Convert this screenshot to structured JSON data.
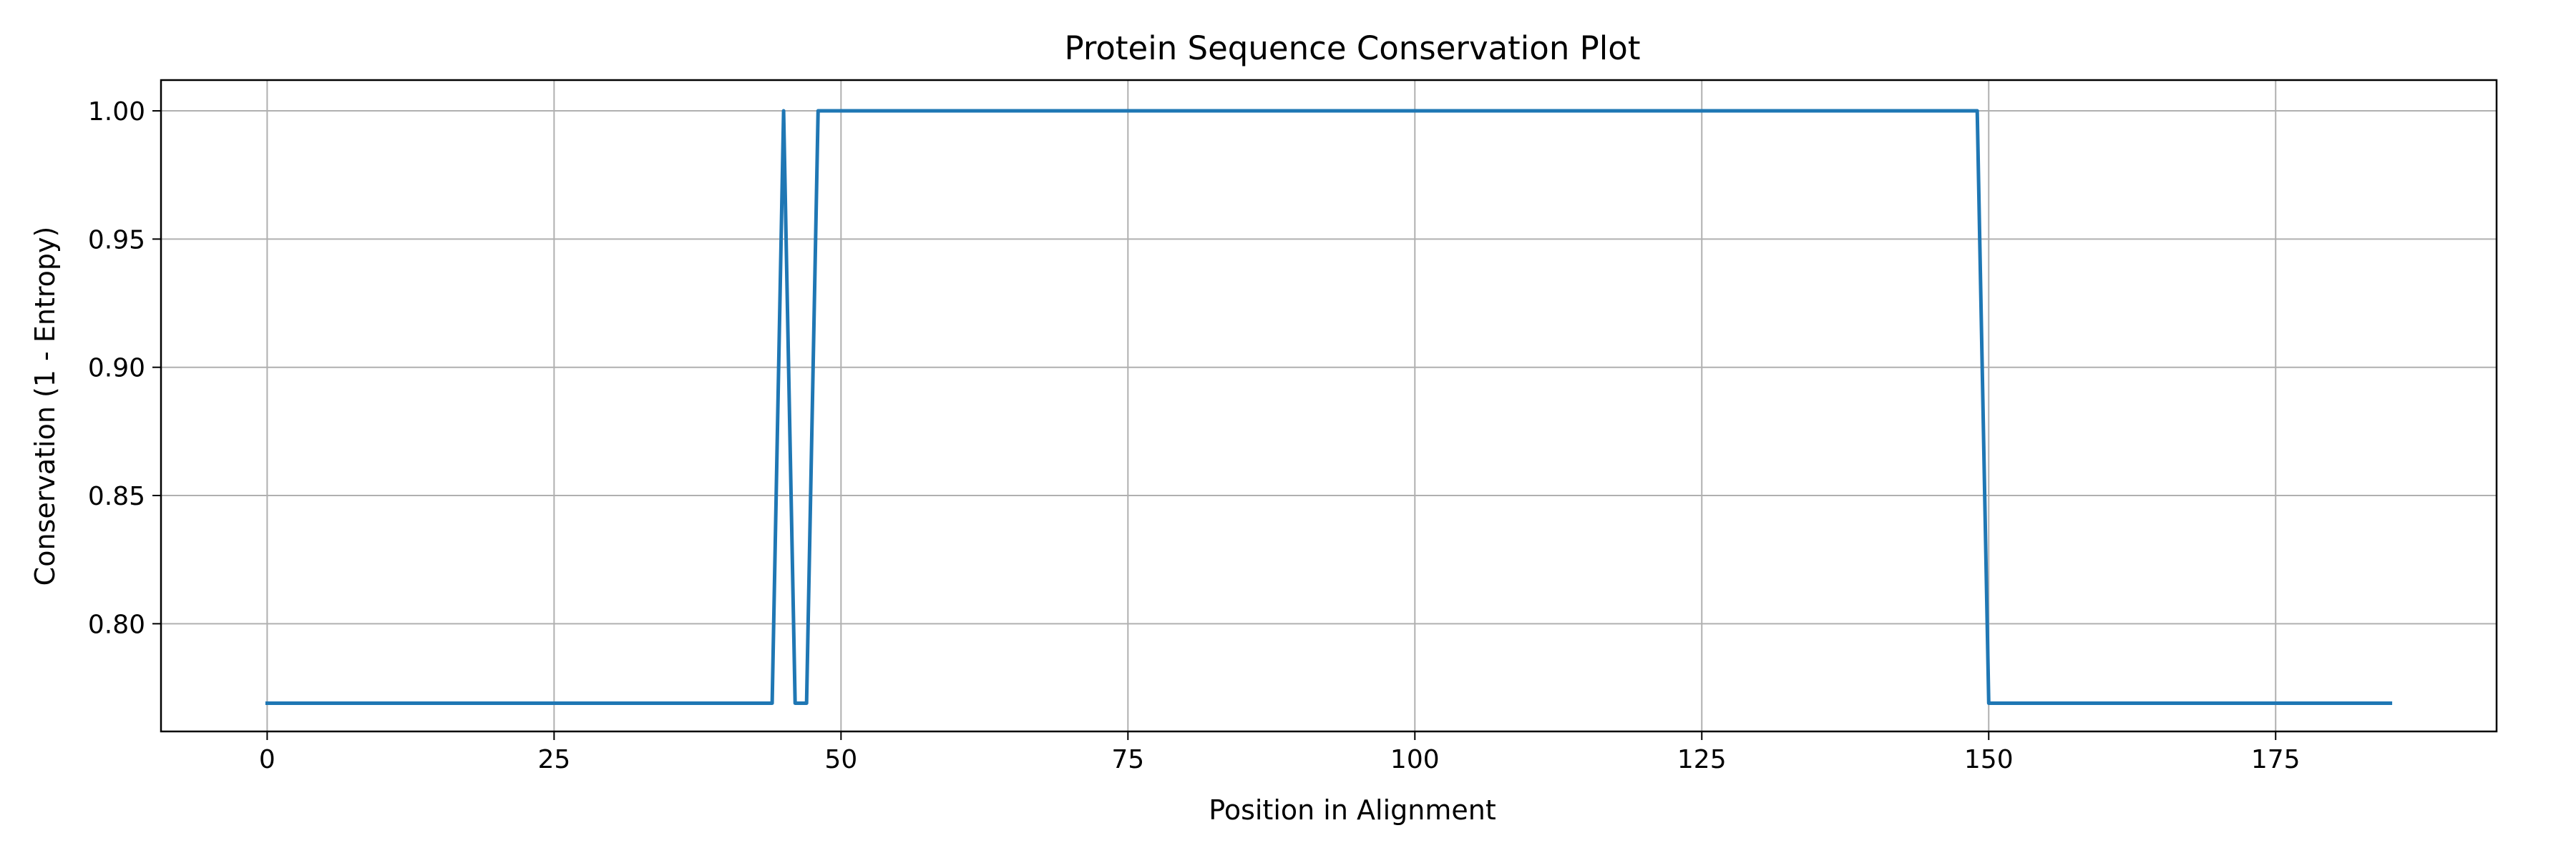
{
  "chart_data": {
    "type": "line",
    "title": "Protein Sequence Conservation Plot",
    "xlabel": "Position in Alignment",
    "ylabel": "Conservation (1 - Entropy)",
    "xlim": [
      -9.25,
      194.25
    ],
    "ylim": [
      0.758,
      1.012
    ],
    "xticks": [
      0,
      25,
      50,
      75,
      100,
      125,
      150,
      175
    ],
    "yticks": [
      0.8,
      0.85,
      0.9,
      0.95,
      1.0
    ],
    "ytick_labels": [
      "0.80",
      "0.85",
      "0.90",
      "0.95",
      "1.00"
    ],
    "grid": true,
    "legend": "none",
    "series": [
      {
        "color": "#1f77b4",
        "x": [
          0,
          44,
          45,
          46,
          47,
          48,
          149,
          150,
          185
        ],
        "y": [
          0.769,
          0.769,
          1.0,
          0.769,
          0.769,
          1.0,
          1.0,
          0.769,
          0.769
        ]
      }
    ]
  }
}
